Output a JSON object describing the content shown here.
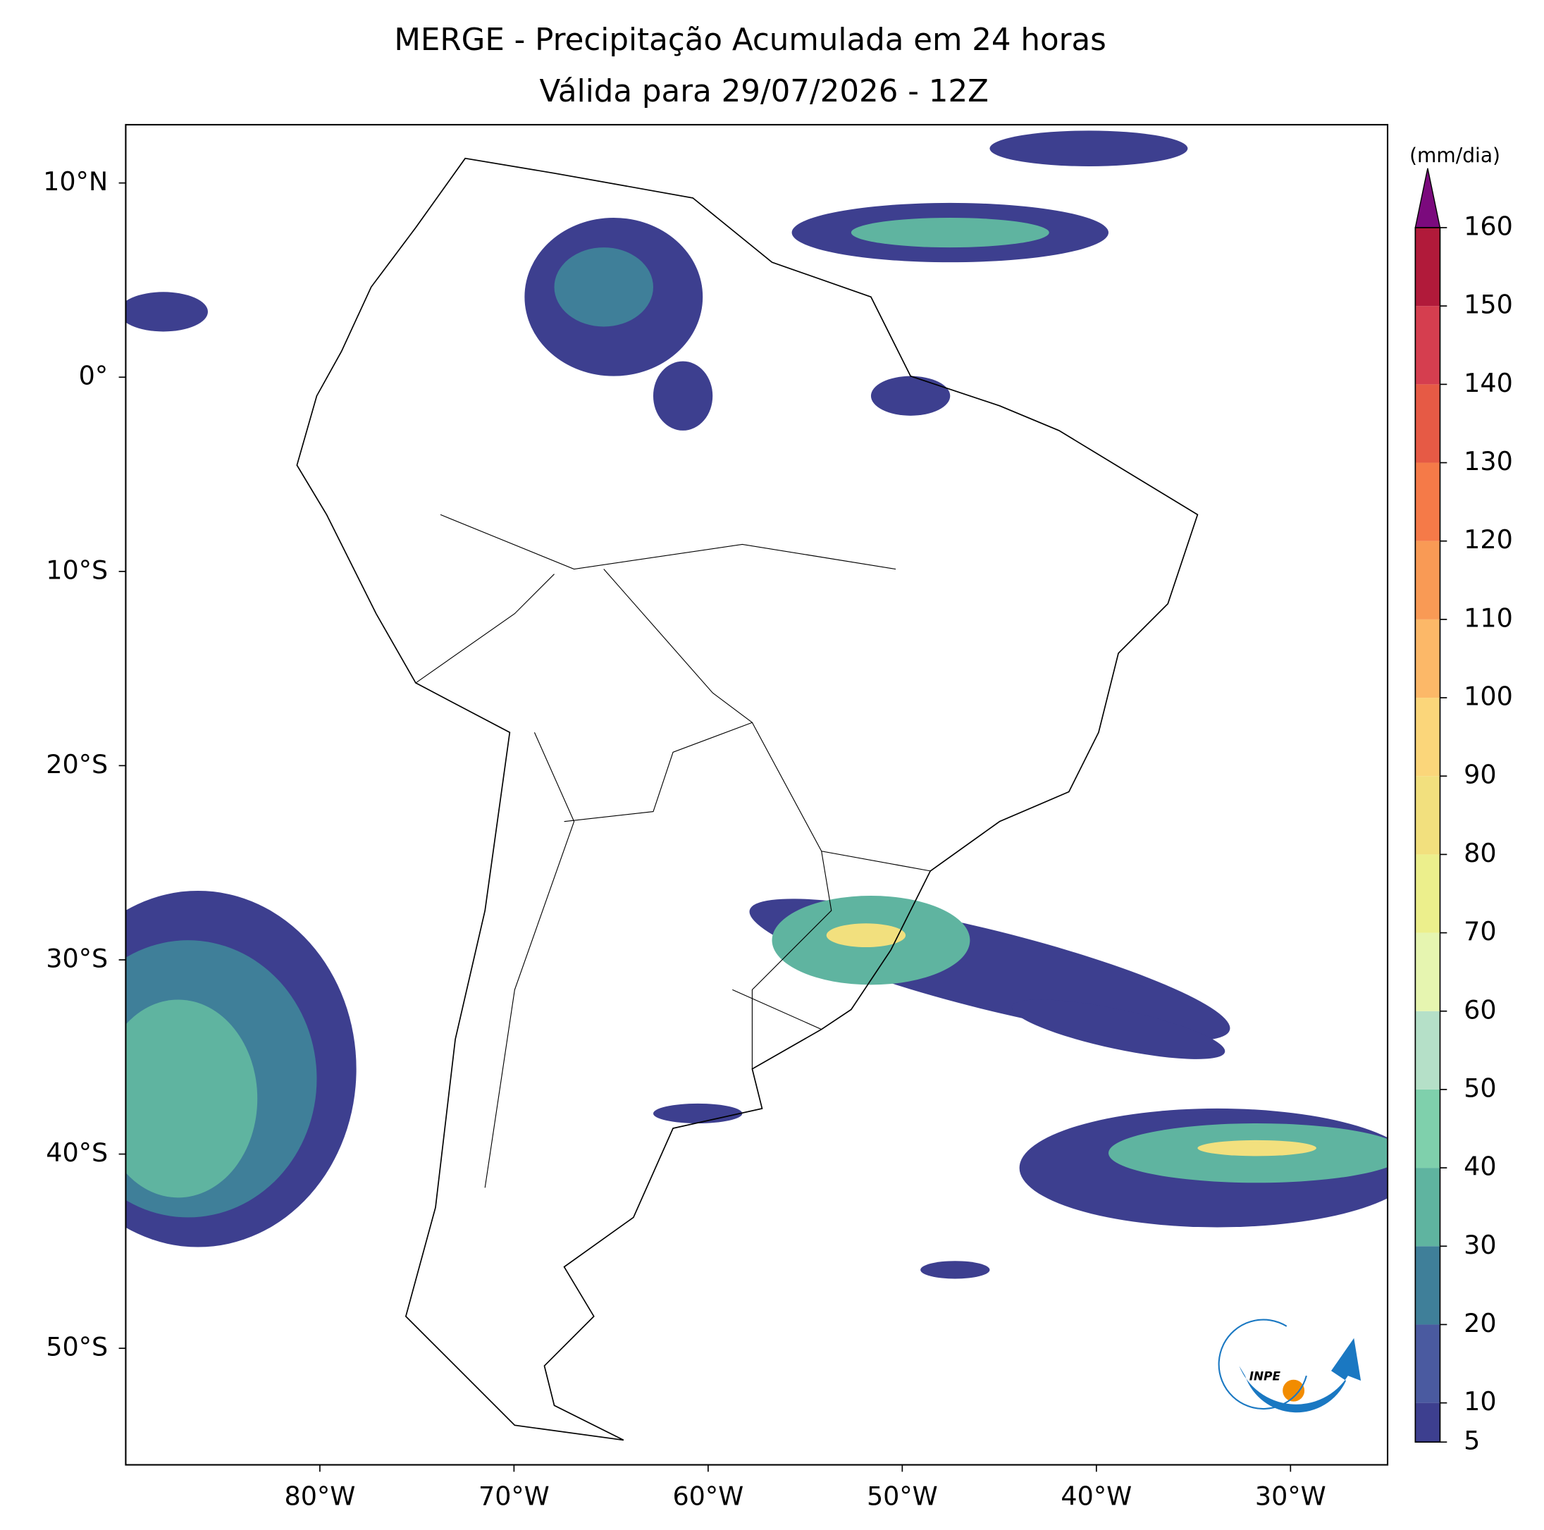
{
  "title": "MERGE - Precipitação Acumulada em 24 horas",
  "subtitle": "Válida para 29/07/2026 - 12Z",
  "map": {
    "xlim": [
      -90,
      -25
    ],
    "ylim": [
      -56,
      13
    ],
    "xticks": [
      {
        "value": -80,
        "label": "80°W"
      },
      {
        "value": -70,
        "label": "70°W"
      },
      {
        "value": -60,
        "label": "60°W"
      },
      {
        "value": -50,
        "label": "50°W"
      },
      {
        "value": -40,
        "label": "40°W"
      },
      {
        "value": -30,
        "label": "30°W"
      }
    ],
    "yticks": [
      {
        "value": 10,
        "label": "10°N"
      },
      {
        "value": 0,
        "label": "0°"
      },
      {
        "value": -10,
        "label": "10°S"
      },
      {
        "value": -20,
        "label": "20°S"
      },
      {
        "value": -30,
        "label": "30°S"
      },
      {
        "value": -40,
        "label": "40°S"
      },
      {
        "value": -50,
        "label": "50°S"
      }
    ]
  },
  "colorbar": {
    "label": "(mm/dia)",
    "lim": [
      5,
      160
    ],
    "ticks": [
      5,
      10,
      20,
      30,
      40,
      50,
      60,
      70,
      80,
      90,
      100,
      110,
      120,
      130,
      140,
      150,
      160
    ],
    "colors": [
      "#3d3f8f",
      "#4a5aa0",
      "#3f7f99",
      "#5fb4a0",
      "#7fd0ac",
      "#b5e0c8",
      "#e6f5b0",
      "#ecef8c",
      "#f2e07e",
      "#fbd67a",
      "#fcb868",
      "#f99a55",
      "#f57a48",
      "#e65a45",
      "#d53e4f",
      "#b11a3a"
    ],
    "extend_color": "#7b0a7d"
  },
  "logo": {
    "text": "INPE"
  }
}
